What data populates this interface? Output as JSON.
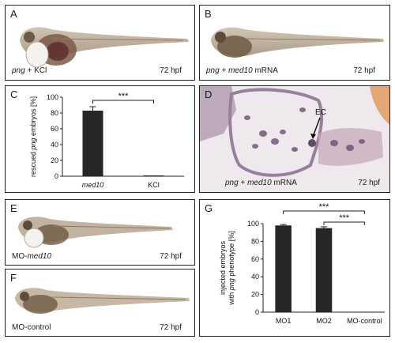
{
  "panels": {
    "A": {
      "label": "A",
      "caption_pre": "",
      "caption_it": "png",
      "caption_post": " + KCl",
      "stage": "72 hpf"
    },
    "B": {
      "label": "B",
      "caption_it": "png",
      "caption_mid": " + ",
      "caption_it2": "med10",
      "caption_post": " mRNA",
      "stage": "72 hpf"
    },
    "C": {
      "label": "C"
    },
    "D": {
      "label": "D",
      "caption_it": "png",
      "caption_mid": " + ",
      "caption_it2": "med10",
      "caption_post": " mRNA",
      "stage": "72 hpf",
      "arrow_label": "EC"
    },
    "E": {
      "label": "E",
      "caption_pre": "MO-",
      "caption_it": "med10",
      "stage": "72 hpf"
    },
    "F": {
      "label": "F",
      "caption": "MO-control",
      "stage": "72 hpf"
    },
    "G": {
      "label": "G"
    }
  },
  "chart_data": [
    {
      "type": "bar",
      "panel": "C",
      "categories": [
        "med10",
        "KCl"
      ],
      "categories_italic": [
        true,
        false
      ],
      "values": [
        83,
        1
      ],
      "errors": [
        5,
        0
      ],
      "ylim": [
        0,
        100
      ],
      "yticks": [
        0,
        20,
        40,
        60,
        80,
        100
      ],
      "ylabel_pre": "rescued ",
      "ylabel_it": "png",
      "ylabel_post": " embryos [%]",
      "significance": [
        {
          "from": 0,
          "to": 1,
          "label": "***"
        }
      ],
      "bar_color": "#262626"
    },
    {
      "type": "bar",
      "panel": "G",
      "categories": [
        "MO1",
        "MO2",
        "MO-control"
      ],
      "categories_italic": [
        false,
        false,
        false
      ],
      "values": [
        98,
        95,
        0.5
      ],
      "errors": [
        1,
        1.5,
        0
      ],
      "ylim": [
        0,
        100
      ],
      "yticks": [
        0,
        20,
        40,
        60,
        80,
        100
      ],
      "ylabel_line1": "injected embryos",
      "ylabel_pre": "with ",
      "ylabel_it": "png",
      "ylabel_post": " phenotype [%]",
      "significance": [
        {
          "from": 0,
          "to": 2,
          "label": "***"
        },
        {
          "from": 1,
          "to": 2,
          "label": "***"
        }
      ],
      "bar_color": "#262626"
    }
  ]
}
